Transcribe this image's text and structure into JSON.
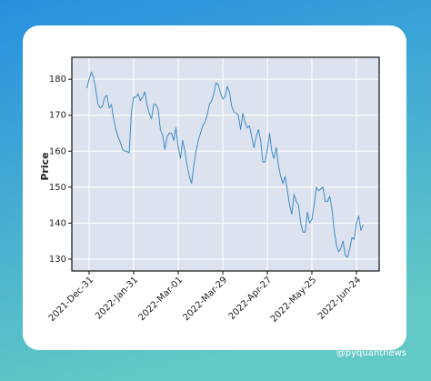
{
  "watermark": "@pyquantnews",
  "chart_data": {
    "type": "line",
    "ylabel": "Price",
    "categories": [
      null,
      "2021-Dec-31",
      null,
      null,
      null,
      null,
      null,
      null,
      null,
      null,
      null,
      null,
      null,
      null,
      null,
      null,
      null,
      null,
      null,
      null,
      null,
      "2022-Jan-31",
      null,
      null,
      null,
      null,
      null,
      null,
      null,
      null,
      null,
      null,
      null,
      null,
      null,
      null,
      null,
      null,
      null,
      null,
      null,
      "2022-Mar-01",
      null,
      null,
      null,
      null,
      null,
      null,
      null,
      null,
      null,
      null,
      null,
      null,
      null,
      null,
      null,
      null,
      null,
      null,
      null,
      "2022-Mar-29",
      null,
      null,
      null,
      null,
      null,
      null,
      null,
      null,
      null,
      null,
      null,
      null,
      null,
      null,
      null,
      null,
      null,
      null,
      null,
      "2022-Apr-27",
      null,
      null,
      null,
      null,
      null,
      null,
      null,
      null,
      null,
      null,
      null,
      null,
      null,
      null,
      null,
      null,
      null,
      null,
      null,
      "2022-May-25",
      null,
      null,
      null,
      null,
      null,
      null,
      null,
      null,
      null,
      null,
      null,
      null,
      null,
      null,
      null,
      null,
      null,
      null,
      null,
      "2022-Jun-24",
      null,
      null,
      null
    ],
    "values": [
      177.5,
      180,
      182,
      180.5,
      177,
      173,
      172,
      172.5,
      175,
      175.5,
      172,
      173,
      169,
      166,
      164,
      162.5,
      160.5,
      160,
      160,
      159.5,
      171,
      175,
      175,
      176,
      174,
      175,
      176.5,
      173,
      170.5,
      169,
      173,
      173,
      171.5,
      166,
      164.5,
      160.5,
      164,
      165,
      165,
      163,
      166.5,
      161,
      158,
      163,
      160,
      156,
      153,
      151,
      156,
      160,
      163,
      165,
      167,
      168,
      170,
      173,
      174,
      176,
      179,
      178.5,
      176,
      174.5,
      175,
      178,
      176.5,
      172.5,
      171,
      170.5,
      170,
      166,
      170.5,
      168,
      166.5,
      167,
      164,
      161,
      164,
      166,
      163,
      157,
      157,
      160.5,
      165,
      160,
      158,
      161,
      156,
      153,
      151,
      153,
      149,
      145,
      142.5,
      148,
      146,
      145,
      140,
      137.5,
      137.5,
      143,
      140,
      141,
      145,
      150,
      149,
      149.5,
      150,
      146,
      146,
      147.5,
      144,
      138,
      134,
      132,
      133,
      135,
      131,
      130.5,
      133,
      136,
      135.5,
      140,
      142,
      138,
      139.5
    ],
    "color": "#3d8cc8",
    "ylim": [
      126.7,
      186.1
    ],
    "yticks": [
      130,
      140,
      150,
      160,
      170,
      180
    ],
    "grid": true
  }
}
